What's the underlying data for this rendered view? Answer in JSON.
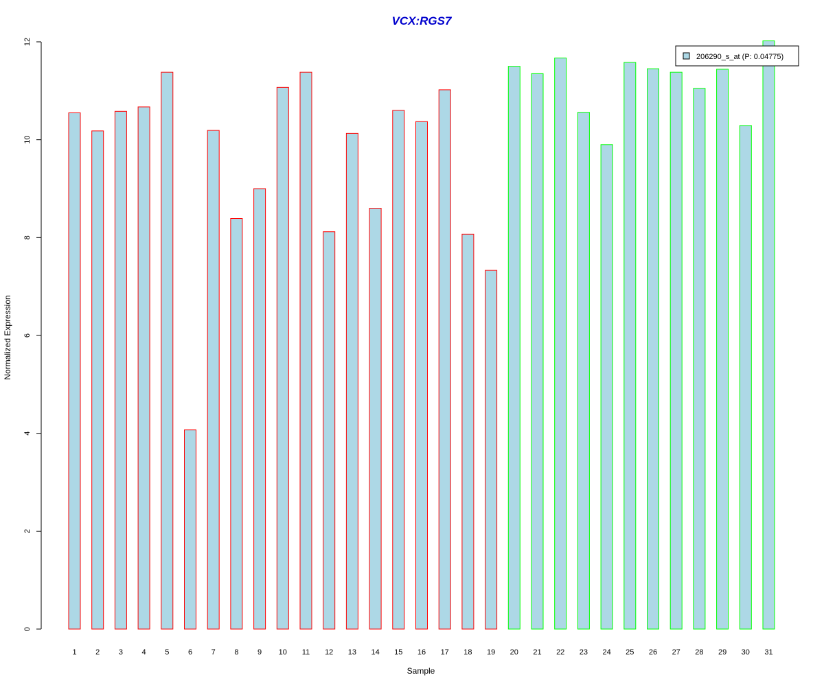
{
  "chart_data": {
    "type": "bar",
    "title": "VCX:RGS7",
    "xlabel": "Sample",
    "ylabel": "Normalized Expression",
    "ylim": [
      0,
      12
    ],
    "yticks": [
      0,
      2,
      4,
      6,
      8,
      10,
      12
    ],
    "grid": false,
    "legend": {
      "position": "top-right",
      "entries": [
        "206290_s_at (P: 0.04775)"
      ]
    },
    "fill_color": "#add8e6",
    "categories": [
      "1",
      "2",
      "3",
      "4",
      "5",
      "6",
      "7",
      "8",
      "9",
      "10",
      "11",
      "12",
      "13",
      "14",
      "15",
      "16",
      "17",
      "18",
      "19",
      "20",
      "21",
      "22",
      "23",
      "24",
      "25",
      "26",
      "27",
      "28",
      "29",
      "30",
      "31"
    ],
    "series": [
      {
        "name": "206290_s_at (P: 0.04775)",
        "values": [
          10.55,
          10.18,
          10.58,
          10.67,
          11.38,
          4.07,
          10.19,
          8.39,
          9.0,
          11.07,
          11.38,
          8.12,
          10.13,
          8.6,
          10.6,
          10.37,
          11.02,
          8.07,
          7.33,
          11.5,
          11.35,
          11.67,
          10.56,
          9.9,
          11.58,
          11.45,
          11.38,
          11.05,
          11.44,
          10.29,
          12.02
        ],
        "group": [
          "red",
          "red",
          "red",
          "red",
          "red",
          "red",
          "red",
          "red",
          "red",
          "red",
          "red",
          "red",
          "red",
          "red",
          "red",
          "red",
          "red",
          "red",
          "red",
          "green",
          "green",
          "green",
          "green",
          "green",
          "green",
          "green",
          "green",
          "green",
          "green",
          "green",
          "green"
        ]
      }
    ],
    "group_colors": {
      "red": "#ff0000",
      "green": "#00ff00"
    }
  }
}
